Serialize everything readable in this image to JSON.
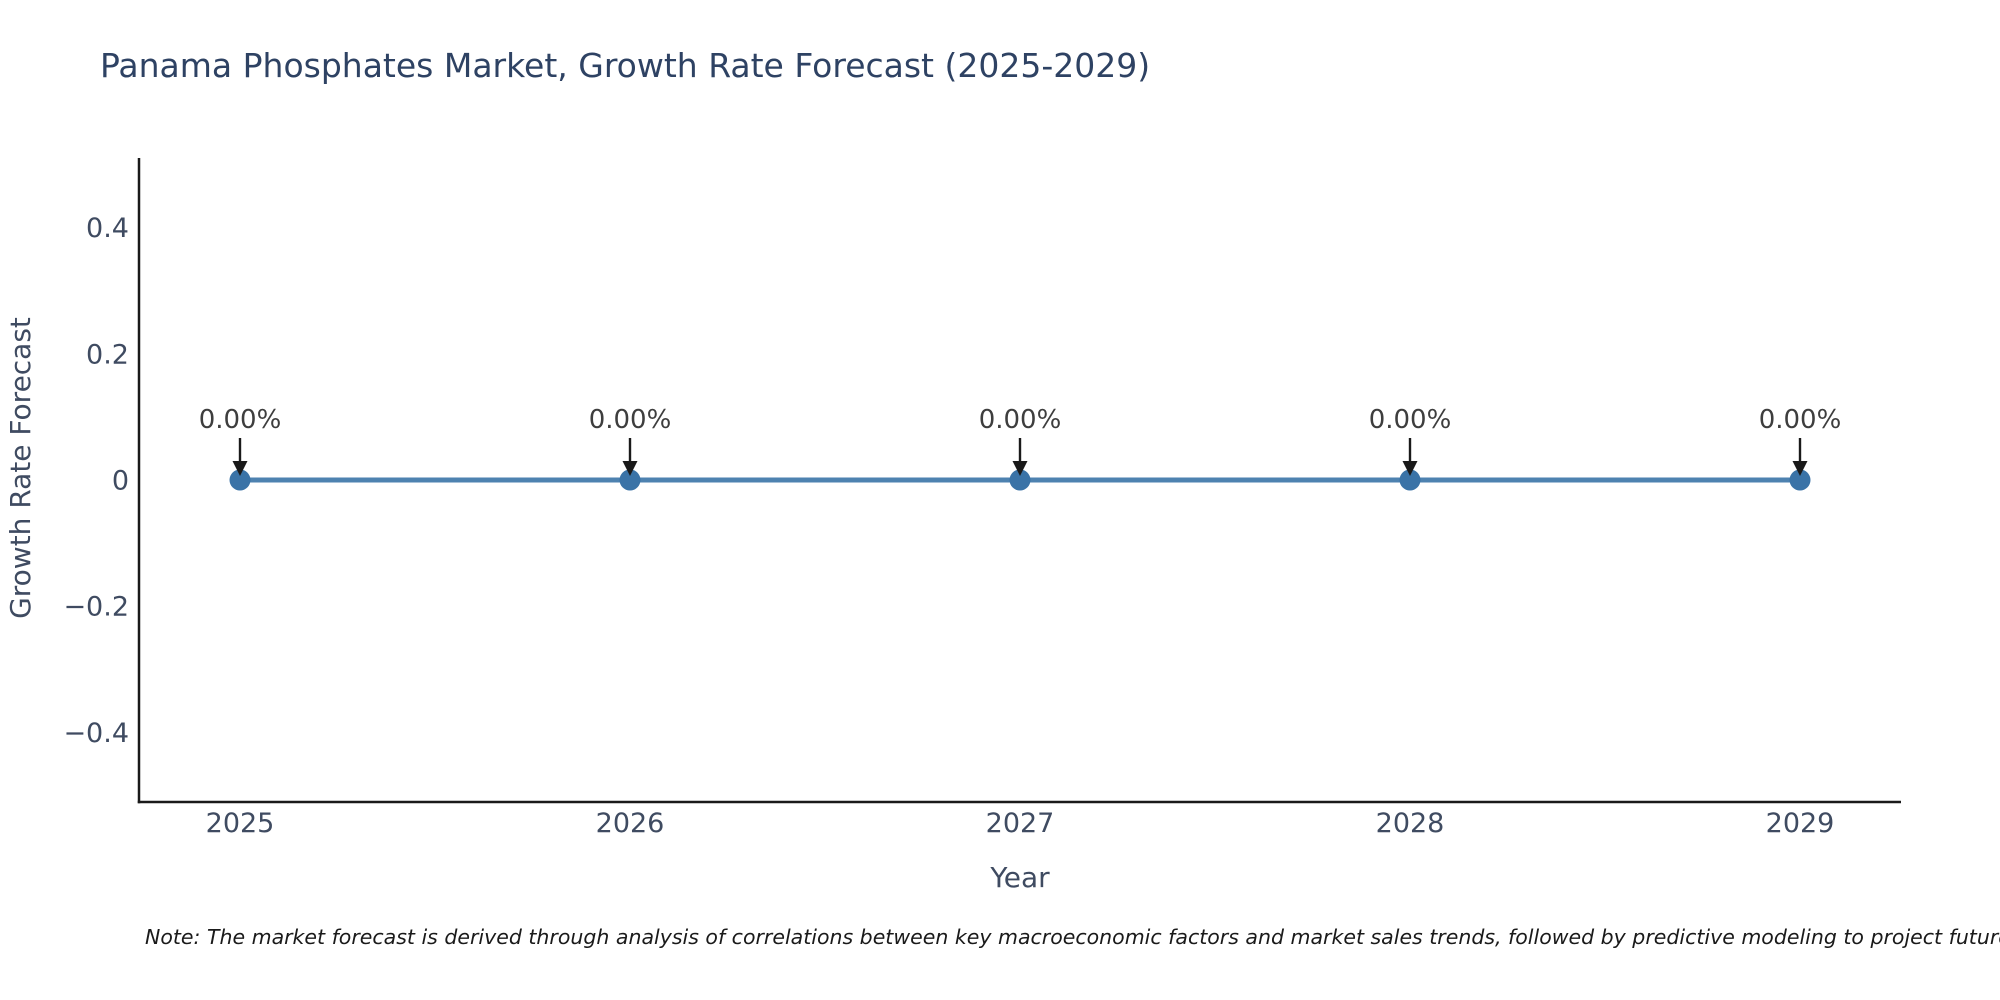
{
  "colors": {
    "background": "#ffffff",
    "title": "#2e4263",
    "axis_text": "#3f4b61",
    "spine": "#1a1a1a",
    "line": "#4e82b0",
    "marker": "#3a73a7",
    "annotation_text": "#3e3e3e",
    "arrow": "#1a1a1a",
    "note_text": "#1a1a1a"
  },
  "chart_data": {
    "type": "line",
    "title": "Panama Phosphates Market, Growth Rate Forecast (2025-2029)",
    "xlabel": "Year",
    "ylabel": "Growth Rate Forecast",
    "x": [
      "2025",
      "2026",
      "2027",
      "2028",
      "2029"
    ],
    "series": [
      {
        "name": "Growth Rate Forecast",
        "values": [
          0,
          0,
          0,
          0,
          0
        ]
      }
    ],
    "point_labels": [
      "0.00%",
      "0.00%",
      "0.00%",
      "0.00%",
      "0.00%"
    ],
    "ytick_values": [
      0.4,
      0.2,
      0,
      -0.2,
      -0.4
    ],
    "ytick_labels": [
      "0.4",
      "0.2",
      "0",
      "−0.2",
      "−0.4"
    ],
    "ylim": [
      -0.52,
      0.52
    ],
    "grid": false,
    "legend": false,
    "marker_style": "circle",
    "annotation_arrow": "down",
    "annotation_note": "Note: The market forecast is derived through analysis of correlations between key macroeconomic factors and market sales trends, followed by predictive modeling to project future sa"
  }
}
